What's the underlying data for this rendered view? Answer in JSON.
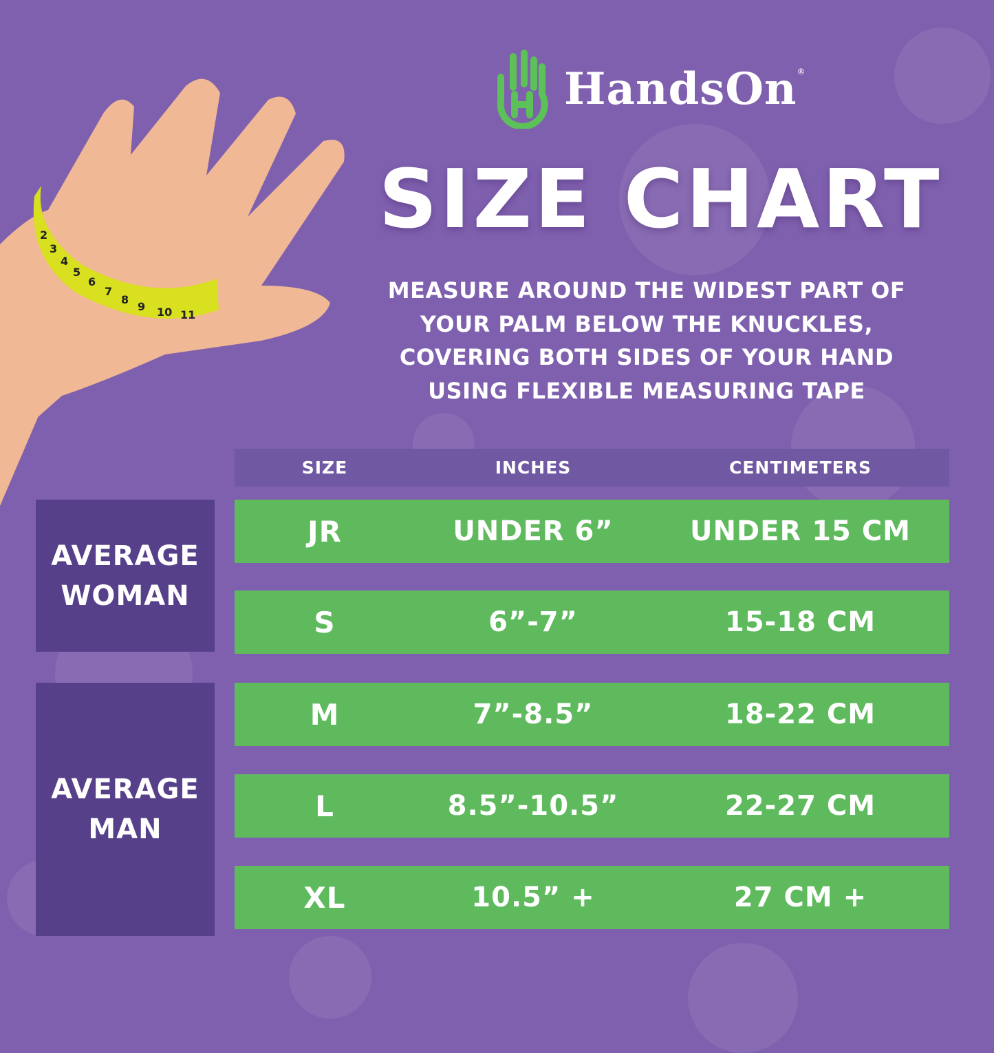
{
  "brand": {
    "name": "HandsOn",
    "registered_mark": "®",
    "logo_icon": "green-hand-h-icon"
  },
  "title": "SIZE CHART",
  "instructions": "MEASURE AROUND THE WIDEST PART OF YOUR PALM BELOW THE KNUCKLES, COVERING BOTH SIDES OF YOUR HAND USING FLEXIBLE MEASURING TAPE",
  "colors": {
    "background": "#7f60ae",
    "header_bar": "#7058a3",
    "row_green": "#5fba5e",
    "group_box": "#57408a",
    "logo_green": "#5cc158"
  },
  "tape_numbers": [
    "2",
    "3",
    "4",
    "5",
    "6",
    "7",
    "8",
    "9",
    "10",
    "11"
  ],
  "table": {
    "headers": [
      "SIZE",
      "INCHES",
      "CENTIMETERS"
    ],
    "rows": [
      {
        "size": "JR",
        "inches": "UNDER 6”",
        "cm": "UNDER 15 CM"
      },
      {
        "size": "S",
        "inches": "6”-7”",
        "cm": "15-18 CM"
      },
      {
        "size": "M",
        "inches": "7”-8.5”",
        "cm": "18-22 CM"
      },
      {
        "size": "L",
        "inches": "8.5”-10.5”",
        "cm": "22-27 CM"
      },
      {
        "size": "XL",
        "inches": "10.5” +",
        "cm": "27 CM +"
      }
    ],
    "groups": [
      {
        "label": "AVERAGE WOMAN"
      },
      {
        "label": "AVERAGE MAN"
      }
    ]
  }
}
